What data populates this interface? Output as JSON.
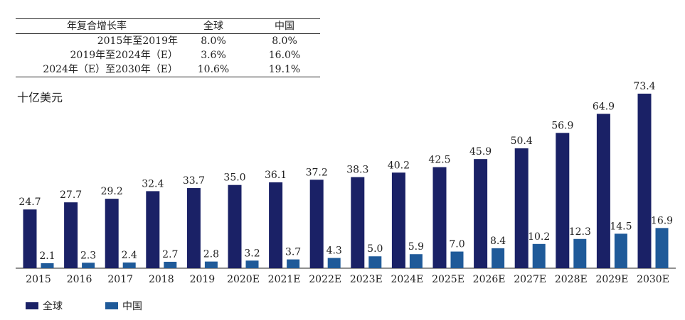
{
  "cagr_table": {
    "headers": [
      "年复合增长率",
      "全球",
      "中国"
    ],
    "rows": [
      [
        "2015年至2019年",
        "8.0%",
        "8.0%"
      ],
      [
        "2019年至2024年（E）",
        "3.6%",
        "16.0%"
      ],
      [
        "2024年（E）至2030年（E）",
        "10.6%",
        "19.1%"
      ]
    ]
  },
  "unit_label": "十亿美元",
  "chart_data": {
    "type": "bar",
    "categories": [
      "2015",
      "2016",
      "2017",
      "2018",
      "2019",
      "2020E",
      "2021E",
      "2022E",
      "2023E",
      "2024E",
      "2025E",
      "2026E",
      "2027E",
      "2028E",
      "2029E",
      "2030E"
    ],
    "series": [
      {
        "name": "全球",
        "color": "#1a2166",
        "values": [
          24.7,
          27.7,
          29.2,
          32.4,
          33.7,
          35.0,
          36.1,
          37.2,
          38.3,
          40.2,
          42.5,
          45.9,
          50.4,
          56.9,
          64.9,
          73.4
        ],
        "labels": [
          "24.7",
          "27.7",
          "29.2",
          "32.4",
          "33.7",
          "35.0",
          "36.1",
          "37.2",
          "38.3",
          "40.2",
          "42.5",
          "45.9",
          "50.4",
          "56.9",
          "64.9",
          "73.4"
        ]
      },
      {
        "name": "中国",
        "color": "#1f5a99",
        "values": [
          2.1,
          2.3,
          2.4,
          2.7,
          2.8,
          3.2,
          3.7,
          4.3,
          5.0,
          5.9,
          7.0,
          8.4,
          10.2,
          12.3,
          14.5,
          16.9
        ],
        "labels": [
          "2.1",
          "2.3",
          "2.4",
          "2.7",
          "2.8",
          "3.2",
          "3.7",
          "4.3",
          "5.0",
          "5.9",
          "7.0",
          "8.4",
          "10.2",
          "12.3",
          "14.5",
          "16.9"
        ]
      }
    ],
    "ylim": [
      0,
      80
    ],
    "legend": "bottom-left",
    "grid": false
  }
}
